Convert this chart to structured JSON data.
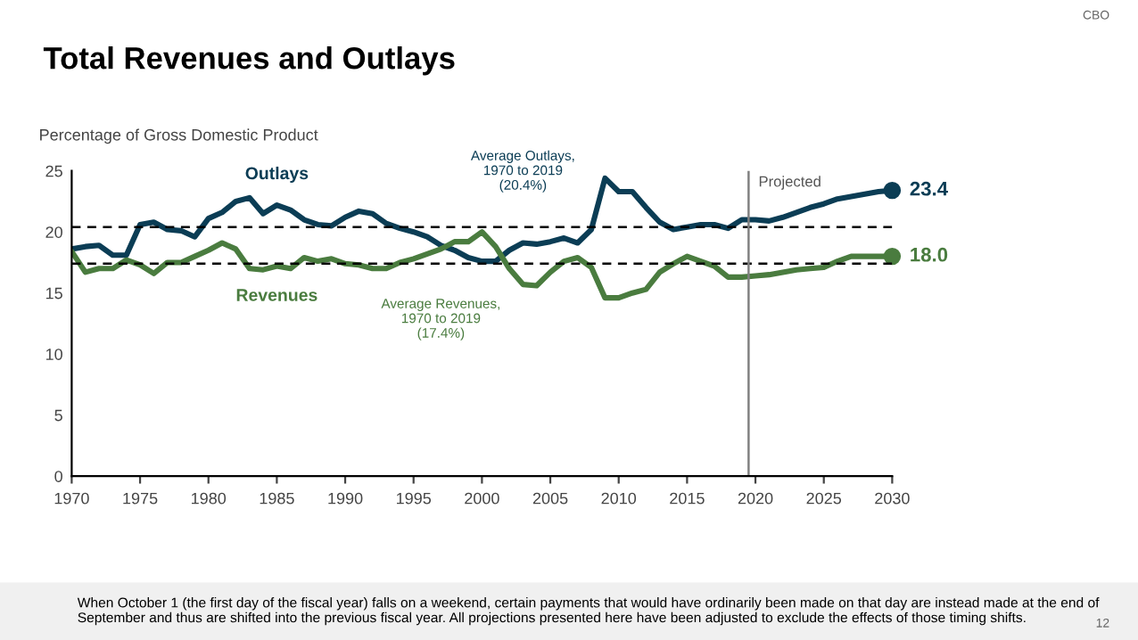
{
  "chart_data": {
    "type": "line",
    "title": "Total Revenues and Outlays",
    "ylabel": "Percentage of Gross Domestic Product",
    "x": [
      1970,
      1971,
      1972,
      1973,
      1974,
      1975,
      1976,
      1977,
      1978,
      1979,
      1980,
      1981,
      1982,
      1983,
      1984,
      1985,
      1986,
      1987,
      1988,
      1989,
      1990,
      1991,
      1992,
      1993,
      1994,
      1995,
      1996,
      1997,
      1998,
      1999,
      2000,
      2001,
      2002,
      2003,
      2004,
      2005,
      2006,
      2007,
      2008,
      2009,
      2010,
      2011,
      2012,
      2013,
      2014,
      2015,
      2016,
      2017,
      2018,
      2019,
      2020,
      2021,
      2022,
      2023,
      2024,
      2025,
      2026,
      2027,
      2028,
      2029,
      2030
    ],
    "series": [
      {
        "name": "Outlays",
        "color": "#0b3d55",
        "values": [
          18.6,
          18.8,
          18.9,
          18.1,
          18.1,
          20.6,
          20.8,
          20.2,
          20.1,
          19.6,
          21.1,
          21.6,
          22.5,
          22.8,
          21.5,
          22.2,
          21.8,
          21.0,
          20.6,
          20.5,
          21.2,
          21.7,
          21.5,
          20.7,
          20.3,
          20.0,
          19.6,
          18.9,
          18.5,
          17.9,
          17.6,
          17.6,
          18.5,
          19.1,
          19.0,
          19.2,
          19.5,
          19.1,
          20.2,
          24.4,
          23.3,
          23.3,
          22.0,
          20.8,
          20.2,
          20.4,
          20.6,
          20.6,
          20.3,
          21.0,
          21.0,
          20.9,
          21.2,
          21.6,
          22.0,
          22.3,
          22.7,
          22.9,
          23.1,
          23.3,
          23.4
        ],
        "value_labels": [
          null,
          null,
          null,
          null,
          null,
          null,
          null,
          null,
          null,
          null,
          null,
          null,
          null,
          null,
          null,
          null,
          null,
          null,
          null,
          null,
          null,
          null,
          null,
          null,
          null,
          null,
          null,
          null,
          null,
          null,
          null,
          null,
          null,
          null,
          null,
          null,
          null,
          null,
          null,
          null,
          null,
          null,
          null,
          null,
          null,
          null,
          null,
          null,
          null,
          null,
          null,
          null,
          null,
          null,
          null,
          null,
          null,
          null,
          null,
          null,
          "23.4"
        ]
      },
      {
        "name": "Revenues",
        "color": "#4a7c3f",
        "values": [
          18.4,
          16.7,
          17.0,
          17.0,
          17.7,
          17.3,
          16.6,
          17.5,
          17.5,
          18.0,
          18.5,
          19.1,
          18.6,
          17.0,
          16.9,
          17.2,
          17.0,
          17.9,
          17.6,
          17.8,
          17.4,
          17.3,
          17.0,
          17.0,
          17.5,
          17.8,
          18.2,
          18.6,
          19.2,
          19.2,
          20.0,
          18.8,
          17.0,
          15.7,
          15.6,
          16.7,
          17.6,
          17.9,
          17.1,
          14.6,
          14.6,
          15.0,
          15.3,
          16.7,
          17.4,
          18.0,
          17.6,
          17.2,
          16.3,
          16.3,
          16.4,
          16.5,
          16.7,
          16.9,
          17.0,
          17.1,
          17.6,
          18.0,
          18.0,
          18.0,
          18.0
        ],
        "value_labels": [
          null,
          null,
          null,
          null,
          null,
          null,
          null,
          null,
          null,
          null,
          null,
          null,
          null,
          null,
          null,
          null,
          null,
          null,
          null,
          null,
          null,
          null,
          null,
          null,
          null,
          null,
          null,
          null,
          null,
          null,
          null,
          null,
          null,
          null,
          null,
          null,
          null,
          null,
          null,
          null,
          null,
          null,
          null,
          null,
          null,
          null,
          null,
          null,
          null,
          null,
          null,
          null,
          null,
          null,
          null,
          null,
          null,
          null,
          null,
          null,
          "18.0"
        ]
      }
    ],
    "xlim": [
      1970,
      2030
    ],
    "xticks": [
      1970,
      1975,
      1980,
      1985,
      1990,
      1995,
      2000,
      2005,
      2010,
      2015,
      2020,
      2025,
      2030
    ],
    "ylim": [
      0,
      25
    ],
    "yticks": [
      0,
      5,
      10,
      15,
      20,
      25
    ],
    "grid": false,
    "legend": false,
    "ref_lines": [
      {
        "axis": "y",
        "value": 20.4,
        "label": "Average Outlays,\n1970 to 2019\n(20.4%)",
        "color": "#000000",
        "line_style": "dashed"
      },
      {
        "axis": "y",
        "value": 17.4,
        "label": "Average Revenues,\n1970 to 2019\n(17.4%)",
        "color": "#000000",
        "line_style": "dashed"
      },
      {
        "axis": "x",
        "value": 2019.5,
        "label": "Projected",
        "color": "#808080",
        "line_style": "solid"
      }
    ],
    "annotations": [
      "When October 1 (the first day of the fiscal year) falls on a weekend, certain payments that would have ordinarily been made on that day are instead made at the end of September and thus are shifted into the previous fiscal year. All projections presented here have been adjusted to exclude the effects of those timing shifts.",
      "CBO",
      "12"
    ]
  }
}
